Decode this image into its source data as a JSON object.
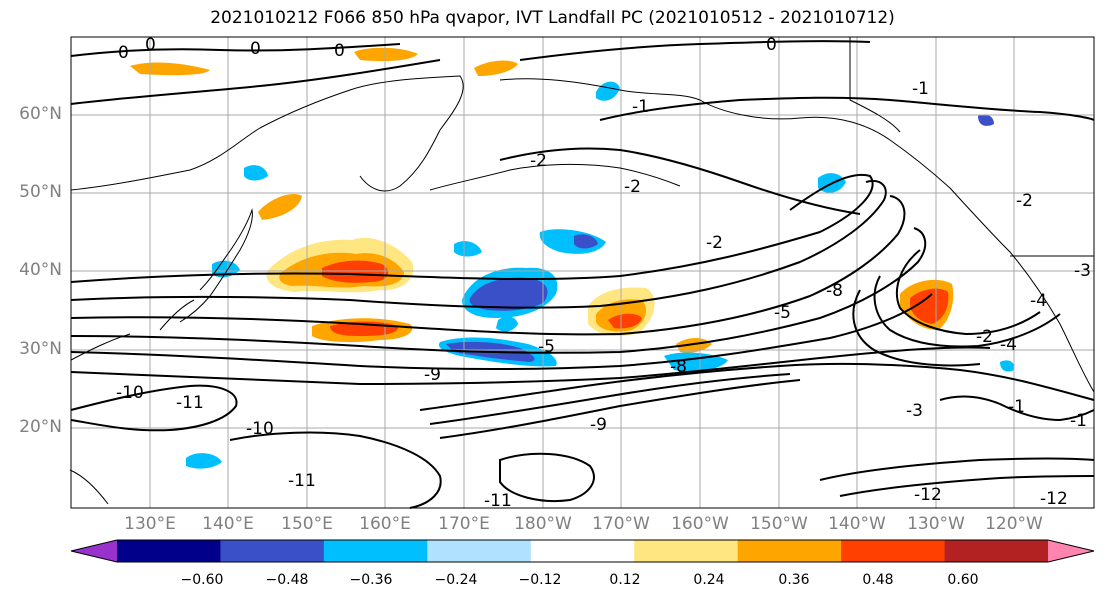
{
  "title": "2021010212 F066 850 hPa qvapor, IVT Landfall PC (2021010512 - 2021010712)",
  "lat_labels": [
    "60°N",
    "50°N",
    "40°N",
    "30°N",
    "20°N"
  ],
  "lon_labels": [
    "130°E",
    "140°E",
    "150°E",
    "160°E",
    "170°E",
    "180°W",
    "170°W",
    "160°W",
    "150°W",
    "140°W",
    "130°W",
    "120°W"
  ],
  "colorbar": {
    "colors": [
      "#9932cc",
      "#00008b",
      "#3a50c8",
      "#00bfff",
      "#b0e2ff",
      "#ffffff",
      "#ffe680",
      "#ffa500",
      "#ff4000",
      "#b22222",
      "#ff85b0"
    ],
    "labels": [
      "−0.60",
      "−0.48",
      "−0.36",
      "−0.24",
      "−0.12",
      "0.12",
      "0.24",
      "0.36",
      "0.48",
      "0.60"
    ]
  },
  "contour_labels": [
    "0",
    "0",
    "0",
    "0",
    "0",
    "-1",
    "-1",
    "-2",
    "-2",
    "-2",
    "-5",
    "-5",
    "-8",
    "-8",
    "-9",
    "-9",
    "-10",
    "-10",
    "-11",
    "-11",
    "-11",
    "-12",
    "-12",
    "-1",
    "-1",
    "-2",
    "-2",
    "-4",
    "-4",
    "-3",
    "-3"
  ]
}
